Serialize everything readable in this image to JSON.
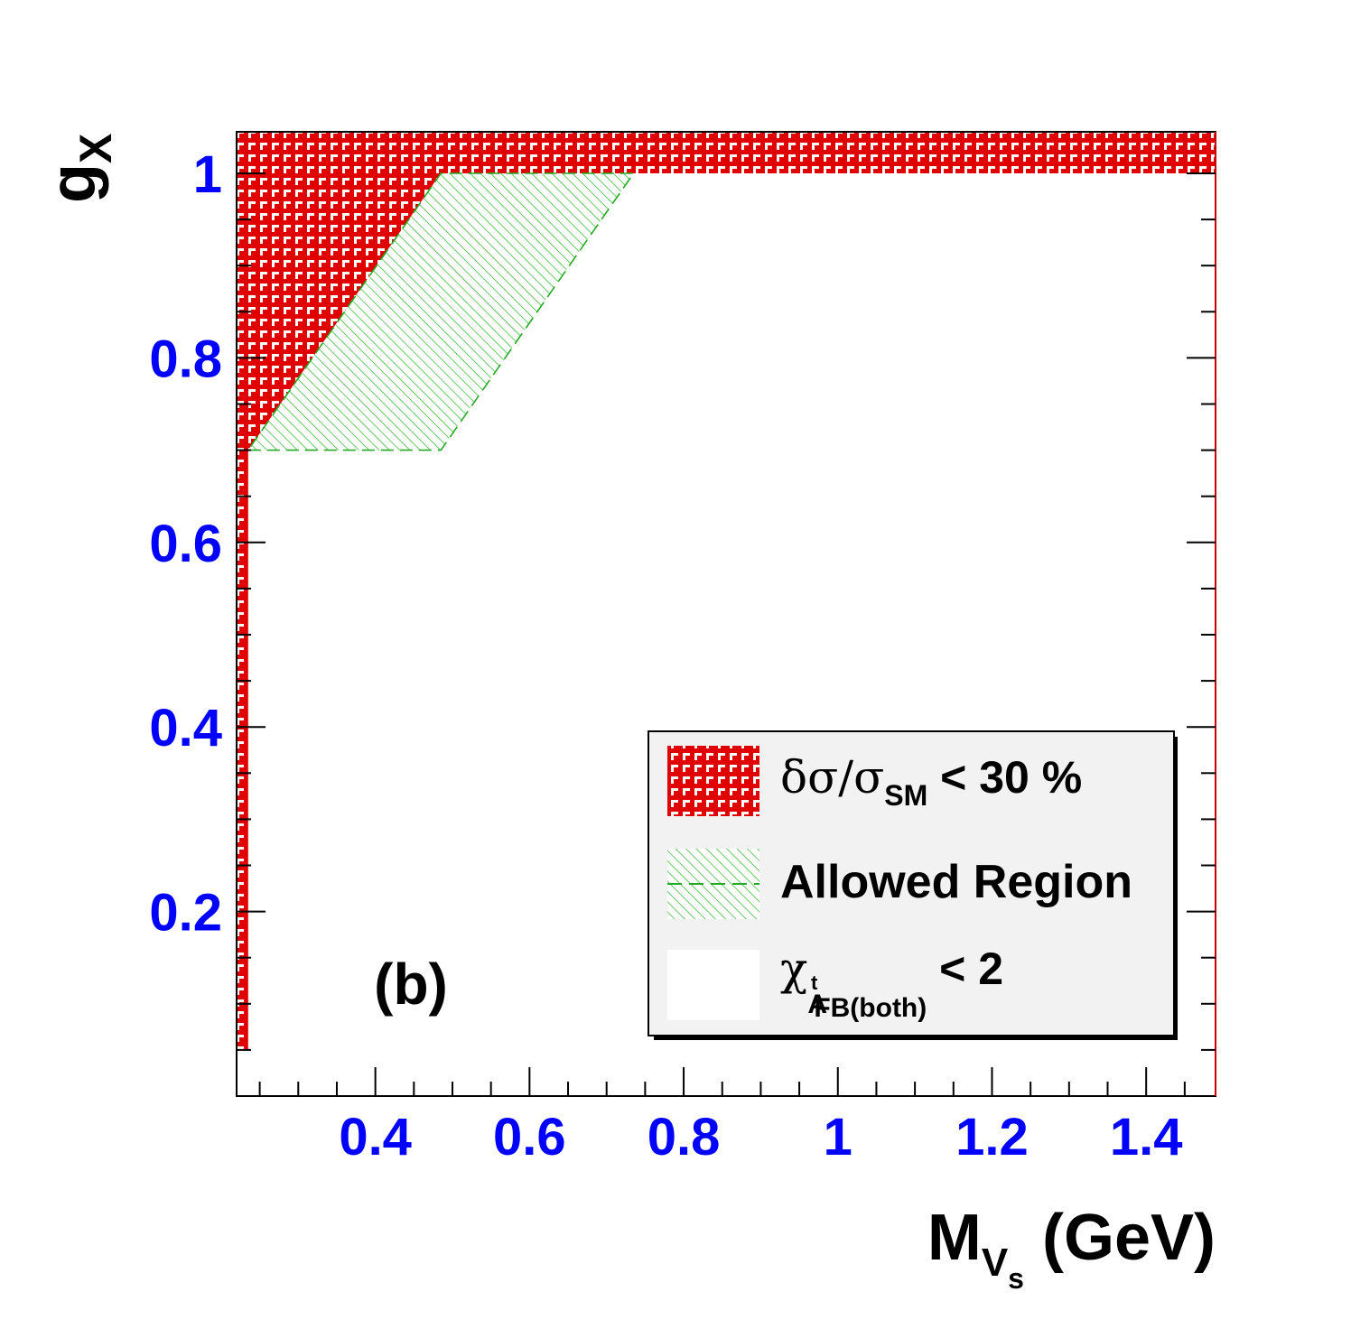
{
  "chart_data": {
    "type": "area",
    "panel_label": "(b)",
    "xaxis": {
      "title_main": "M",
      "title_sub": "V",
      "title_subsub": "s",
      "title_unit": " (GeV)",
      "range": [
        0.22,
        1.49
      ],
      "major_ticks": [
        0.4,
        0.6,
        0.8,
        1.0,
        1.2,
        1.4
      ],
      "tick_labels": [
        "0.4",
        "0.6",
        "0.8",
        "1",
        "1.2",
        "1.4"
      ],
      "label_color": "#0000ff"
    },
    "yaxis": {
      "title_main": "g",
      "title_sub": "X",
      "range": [
        0.0,
        1.045
      ],
      "major_ticks": [
        0.2,
        0.4,
        0.6,
        0.8,
        1.0
      ],
      "tick_labels": [
        "0.2",
        "0.4",
        "0.6",
        "0.8",
        "1"
      ],
      "label_color": "#0000ff"
    },
    "regions": [
      {
        "name": "cross_section",
        "legend": "δσ/σ_SM < 30 %",
        "color": "#ff0000",
        "polygons": [
          [
            [
              0.22,
              1.0
            ],
            [
              1.49,
              1.0
            ],
            [
              1.49,
              1.045
            ],
            [
              0.22,
              1.045
            ]
          ],
          [
            [
              0.22,
              0.7
            ],
            [
              0.235,
              0.7
            ],
            [
              0.485,
              1.0
            ],
            [
              0.22,
              1.0
            ]
          ],
          [
            [
              0.22,
              0.05
            ],
            [
              0.235,
              0.05
            ],
            [
              0.235,
              0.7
            ],
            [
              0.22,
              0.7
            ]
          ]
        ]
      },
      {
        "name": "allowed",
        "legend": "Allowed Region",
        "color": "#00aa00",
        "polygon": [
          [
            0.235,
            0.7
          ],
          [
            0.485,
            0.7
          ],
          [
            0.735,
            1.0
          ],
          [
            0.485,
            1.0
          ]
        ]
      }
    ],
    "legend": {
      "position": "bottom-right",
      "entries": [
        {
          "text_greek": "δσ/σ",
          "text_sub": "SM",
          "text_tail": " < 30 %",
          "kind": "red-hatch"
        },
        {
          "text": "Allowed Region",
          "kind": "green-hatch"
        },
        {
          "text_greek": "χ",
          "text_sub1": "A",
          "text_sup": "t",
          "text_sub2": "FB(both)",
          "text_tail": " < 2",
          "kind": "white"
        }
      ]
    }
  }
}
